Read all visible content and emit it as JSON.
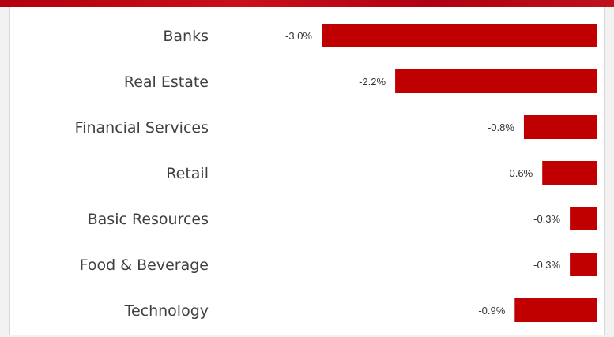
{
  "chart_data": {
    "type": "bar",
    "orientation": "horizontal",
    "categories": [
      "Banks",
      "Real Estate",
      "Financial Services",
      "Retail",
      "Basic Resources",
      "Food & Beverage",
      "Technology"
    ],
    "values": [
      -3.0,
      -2.2,
      -0.8,
      -0.6,
      -0.3,
      -0.3,
      -0.9
    ],
    "data_labels": [
      "-3.0%",
      "-2.2%",
      "-0.8%",
      "-0.6%",
      "-0.3%",
      "-0.3%",
      "-0.9%"
    ],
    "xlim": [
      -3.0,
      0
    ],
    "grid": false,
    "legend": "none",
    "bar_color": "#c00000"
  },
  "colors": {
    "accent": "#c00000",
    "label_text": "#404040"
  }
}
